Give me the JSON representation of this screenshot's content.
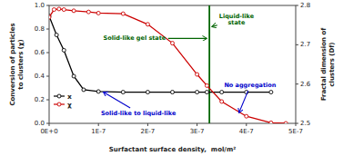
{
  "chart_data": {
    "type": "line",
    "xlabel": "Surfactant surface density,  mol/m²",
    "ylabel": "Conversion of particles\nto clusters (χ)",
    "y2label": "Fractal dimension of\nclusters (Df)",
    "xlim": [
      0,
      5e-07
    ],
    "xticks": [
      {
        "value": 0,
        "label": "0E+0"
      },
      {
        "value": 1e-07,
        "label": "1E-7"
      },
      {
        "value": 2e-07,
        "label": "2E-7"
      },
      {
        "value": 3e-07,
        "label": "3E-7"
      },
      {
        "value": 4e-07,
        "label": "4E-7"
      },
      {
        "value": 5e-07,
        "label": "5E-7"
      }
    ],
    "ylim": [
      0,
      1.0
    ],
    "yticks": [
      {
        "value": 0.0,
        "label": "0.0"
      },
      0.2,
      0.4,
      0.6,
      0.8,
      {
        "value": 1.0,
        "label": "1.0"
      }
    ],
    "y2lim": [
      2.5,
      2.8
    ],
    "y2ticks": [
      2.5,
      2.6,
      2.7,
      2.8
    ],
    "series": [
      {
        "name": "x",
        "color": "#000000",
        "marker": "circle",
        "x": [
          0,
          1.5e-08,
          3e-08,
          5e-08,
          7e-08,
          1e-07,
          1.5e-07,
          2e-07,
          2.5e-07,
          3e-07,
          3.2e-07,
          3.5e-07,
          4e-07,
          4.5e-07
        ],
        "values": [
          0.91,
          0.75,
          0.62,
          0.4,
          0.285,
          0.27,
          0.265,
          0.265,
          0.265,
          0.265,
          0.265,
          0.265,
          0.265,
          0.265
        ]
      },
      {
        "name": "χ",
        "color": "#cc0000",
        "marker": "circle",
        "x": [
          0,
          1e-08,
          2e-08,
          3e-08,
          5e-08,
          8e-08,
          1e-07,
          1.5e-07,
          2e-07,
          2.5e-07,
          3e-07,
          3.2e-07,
          3.5e-07,
          4e-07,
          4.5e-07,
          4.8e-07
        ],
        "values": [
          0.9,
          0.965,
          0.97,
          0.965,
          0.955,
          0.945,
          0.935,
          0.93,
          0.84,
          0.68,
          0.415,
          0.32,
          0.185,
          0.06,
          0.005,
          0.0
        ]
      }
    ],
    "vlines": [
      {
        "x": 3.25e-07,
        "color": "#006400"
      }
    ],
    "annotations": [
      {
        "text": "Solid-like gel state",
        "color": "#006400",
        "x": 3.2e-07,
        "y": 0.72,
        "text_x": 1.1e-07,
        "text_y": 0.72
      },
      {
        "text": "Liquid-like\nstate",
        "color": "#006400",
        "x": 3.3e-07,
        "y": 0.82,
        "text_x": 3.8e-07,
        "text_y": 0.88
      },
      {
        "text": "Solid-like to liquid-like",
        "color": "#0000cc",
        "x": 1.1e-07,
        "y": 0.265,
        "text_x": 1.05e-07,
        "text_y": 0.11
      },
      {
        "text": "No aggregation",
        "color": "#0000cc",
        "x": 3.85e-07,
        "y": 0.09,
        "text_x": 3.55e-07,
        "text_y": 0.32
      }
    ],
    "legend": "lower left",
    "grid": false
  }
}
